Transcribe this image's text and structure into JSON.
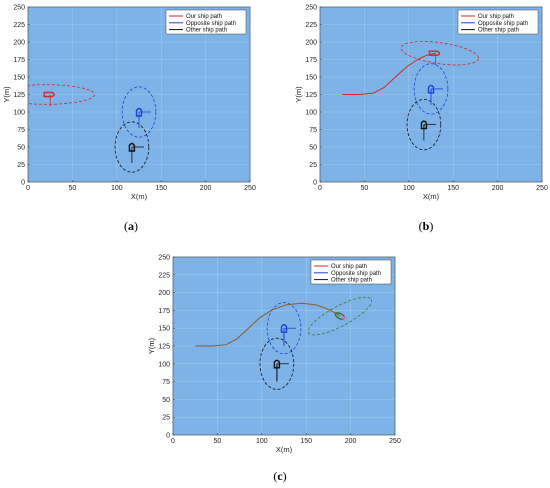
{
  "chart_data": [
    {
      "panel": "a",
      "caption": "(a)",
      "type": "line",
      "xlabel": "X(m)",
      "ylabel": "Y(m)",
      "xlim": [
        0,
        250
      ],
      "ylim": [
        0,
        250
      ],
      "xticks": [
        0,
        50,
        100,
        150,
        200,
        250
      ],
      "yticks": [
        0,
        25,
        50,
        75,
        100,
        125,
        150,
        175,
        200,
        225,
        250
      ],
      "grid": true,
      "legend": "top-right",
      "legend_entries": [
        {
          "label": "Our ship path",
          "color": "#d62728"
        },
        {
          "label": "Opposite ship path",
          "color": "#1f3fd9"
        },
        {
          "label": "Other ship path",
          "color": "#111111"
        }
      ],
      "series": [
        {
          "color": "#d62728",
          "x": [
            25
          ],
          "y": [
            125
          ]
        },
        {
          "color": "#1f3fd9",
          "x": [
            125
          ],
          "y": [
            100
          ]
        },
        {
          "color": "#111111",
          "x": [
            117
          ],
          "y": [
            50
          ]
        }
      ],
      "ships": [
        {
          "color": "#d62728",
          "x": 25,
          "y": 125,
          "heading": "east",
          "ellipse": {
            "cx": 20,
            "cy": 125,
            "rx": 55,
            "ry": 14,
            "angle": 0
          }
        },
        {
          "color": "#1f3fd9",
          "x": 125,
          "y": 100,
          "heading": "north",
          "ellipse": {
            "cx": 125,
            "cy": 100,
            "rx": 19,
            "ry": 36,
            "angle": 0
          }
        },
        {
          "color": "#111111",
          "x": 117,
          "y": 50,
          "heading": "north",
          "ellipse": {
            "cx": 117,
            "cy": 50,
            "rx": 19,
            "ry": 36,
            "angle": 0
          }
        }
      ]
    },
    {
      "panel": "b",
      "caption": "(b)",
      "type": "line",
      "xlabel": "X(m)",
      "ylabel": "Y(m)",
      "xlim": [
        0,
        250
      ],
      "ylim": [
        0,
        250
      ],
      "xticks": [
        0,
        50,
        100,
        150,
        200,
        250
      ],
      "yticks": [
        0,
        25,
        50,
        75,
        100,
        125,
        150,
        175,
        200,
        225,
        250
      ],
      "grid": true,
      "legend": "top-right",
      "legend_entries": [
        {
          "label": "Our ship path",
          "color": "#d62728"
        },
        {
          "label": "Opposite ship path",
          "color": "#1f3fd9"
        },
        {
          "label": "Other ship path",
          "color": "#111111"
        }
      ],
      "series": [
        {
          "color": "#d62728",
          "x": [
            25,
            45,
            60,
            72,
            85,
            98,
            110,
            120,
            130
          ],
          "y": [
            125,
            125,
            127,
            135,
            150,
            165,
            175,
            181,
            184
          ]
        },
        {
          "color": "#1f3fd9",
          "x": [
            125,
            125
          ],
          "y": [
            125,
            133
          ]
        },
        {
          "color": "#111111",
          "x": [
            117,
            117
          ],
          "y": [
            75,
            82
          ]
        }
      ],
      "ships": [
        {
          "color": "#d62728",
          "x": 130,
          "y": 184,
          "heading": "east",
          "ellipse": {
            "cx": 135,
            "cy": 184,
            "rx": 44,
            "ry": 15,
            "angle": 8
          }
        },
        {
          "color": "#1f3fd9",
          "x": 125,
          "y": 133,
          "heading": "north",
          "ellipse": {
            "cx": 125,
            "cy": 133,
            "rx": 19,
            "ry": 36,
            "angle": 0
          }
        },
        {
          "color": "#111111",
          "x": 117,
          "y": 82,
          "heading": "north",
          "ellipse": {
            "cx": 117,
            "cy": 82,
            "rx": 19,
            "ry": 36,
            "angle": 0
          }
        }
      ]
    },
    {
      "panel": "c",
      "caption": "(c)",
      "type": "line",
      "xlabel": "X(m)",
      "ylabel": "Y(m)",
      "xlim": [
        0,
        250
      ],
      "ylim": [
        0,
        250
      ],
      "xticks": [
        0,
        50,
        100,
        150,
        200,
        250
      ],
      "yticks": [
        0,
        25,
        50,
        75,
        100,
        125,
        150,
        175,
        200,
        225,
        250
      ],
      "grid": true,
      "legend": "top-right",
      "legend_entries": [
        {
          "label": "Our ship path",
          "color": "#d62728"
        },
        {
          "label": "Opposite ship path",
          "color": "#1f3fd9"
        },
        {
          "label": "Other ship path",
          "color": "#111111"
        }
      ],
      "series": [
        {
          "color": "#8a5a2a",
          "x": [
            25,
            45,
            60,
            72,
            85,
            98,
            112,
            128,
            145,
            160,
            172,
            182,
            188
          ],
          "y": [
            125,
            125,
            127,
            135,
            150,
            165,
            176,
            183,
            185,
            183,
            178,
            172,
            167
          ]
        },
        {
          "color": "#1f3fd9",
          "x": [
            125,
            125
          ],
          "y": [
            125,
            150
          ]
        },
        {
          "color": "#111111",
          "x": [
            117,
            117
          ],
          "y": [
            75,
            100
          ]
        }
      ],
      "ships": [
        {
          "color": "#3a7a2a",
          "x": 188,
          "y": 167,
          "heading": "southeast",
          "ellipse": {
            "cx": 188,
            "cy": 167,
            "rx": 40,
            "ry": 14,
            "angle": -28
          }
        },
        {
          "color": "#1f3fd9",
          "x": 125,
          "y": 150,
          "heading": "north",
          "ellipse": {
            "cx": 125,
            "cy": 150,
            "rx": 19,
            "ry": 36,
            "angle": 0
          }
        },
        {
          "color": "#111111",
          "x": 117,
          "y": 100,
          "heading": "north",
          "ellipse": {
            "cx": 117,
            "cy": 100,
            "rx": 19,
            "ry": 36,
            "angle": 0
          }
        }
      ]
    }
  ]
}
